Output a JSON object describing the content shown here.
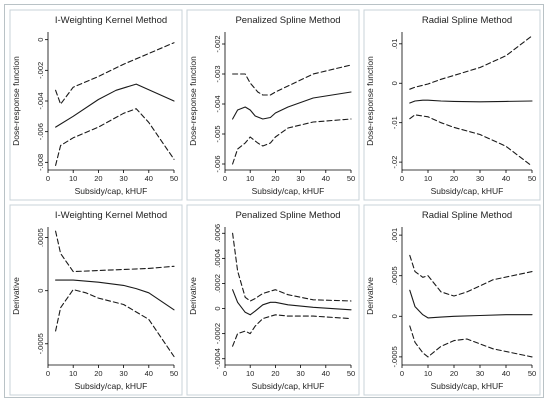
{
  "chart_data": [
    {
      "type": "line",
      "title": "I-Weighting Kernel Method",
      "xlabel": "Subsidy/cap, kHUF",
      "ylabel": "Dose-response function",
      "xlim": [
        0,
        50
      ],
      "ylim": [
        -0.0085,
        0.0005
      ],
      "xticks": [
        0,
        10,
        20,
        30,
        40,
        50
      ],
      "xtick_labels": [
        "0",
        "10",
        "20",
        "30",
        "40",
        "50"
      ],
      "yticks": [
        -0.008,
        -0.006,
        -0.004,
        -0.002,
        0
      ],
      "ytick_labels": [
        "-.008",
        "-.006",
        "-.004",
        "-.002",
        "0"
      ],
      "series": [
        {
          "style": "solid",
          "x": [
            3,
            10,
            20,
            27,
            35,
            50
          ],
          "y": [
            -0.0057,
            -0.005,
            -0.0039,
            -0.0033,
            -0.0029,
            -0.004
          ]
        },
        {
          "style": "dashed",
          "x": [
            3,
            5,
            10,
            20,
            30,
            40,
            50
          ],
          "y": [
            -0.0033,
            -0.0042,
            -0.0031,
            -0.0024,
            -0.0016,
            -0.0009,
            -0.0002
          ]
        },
        {
          "style": "dashed",
          "x": [
            3,
            5,
            10,
            20,
            30,
            35,
            40,
            50
          ],
          "y": [
            -0.0082,
            -0.0069,
            -0.0064,
            -0.0057,
            -0.0048,
            -0.0045,
            -0.0054,
            -0.0078
          ]
        }
      ]
    },
    {
      "type": "line",
      "title": "Penalized Spline Method",
      "xlabel": "Subsidy/cap, kHUF",
      "ylabel": "Dose-response function",
      "xlim": [
        0,
        50
      ],
      "ylim": [
        -0.0062,
        -0.0016
      ],
      "xticks": [
        0,
        10,
        20,
        30,
        40,
        50
      ],
      "xtick_labels": [
        "0",
        "10",
        "20",
        "30",
        "40",
        "50"
      ],
      "yticks": [
        -0.006,
        -0.005,
        -0.004,
        -0.003,
        -0.002
      ],
      "ytick_labels": [
        "-.006",
        "-.005",
        "-.004",
        "-.003",
        "-.002"
      ],
      "series": [
        {
          "style": "solid",
          "x": [
            3,
            5,
            8,
            10,
            12,
            15,
            18,
            20,
            25,
            35,
            50
          ],
          "y": [
            -0.0045,
            -0.0042,
            -0.0041,
            -0.0042,
            -0.0044,
            -0.0045,
            -0.00445,
            -0.0043,
            -0.0041,
            -0.0038,
            -0.0036
          ]
        },
        {
          "style": "dashed",
          "x": [
            3,
            5,
            8,
            10,
            13,
            15,
            18,
            20,
            25,
            35,
            50
          ],
          "y": [
            -0.003,
            -0.003,
            -0.003,
            -0.0033,
            -0.0036,
            -0.0037,
            -0.0037,
            -0.0036,
            -0.0034,
            -0.003,
            -0.0027
          ]
        },
        {
          "style": "dashed",
          "x": [
            3,
            5,
            8,
            10,
            13,
            15,
            18,
            20,
            25,
            35,
            50
          ],
          "y": [
            -0.006,
            -0.0055,
            -0.0053,
            -0.0051,
            -0.0053,
            -0.0054,
            -0.0053,
            -0.0051,
            -0.0048,
            -0.0046,
            -0.0045
          ]
        }
      ]
    },
    {
      "type": "line",
      "title": "Radial Spline Method",
      "xlabel": "Subsidy/cap, kHUF",
      "ylabel": "Dose-response function",
      "xlim": [
        0,
        50
      ],
      "ylim": [
        -0.022,
        0.013
      ],
      "xticks": [
        0,
        10,
        20,
        30,
        40,
        50
      ],
      "xtick_labels": [
        "0",
        "10",
        "20",
        "30",
        "40",
        "50"
      ],
      "yticks": [
        -0.02,
        -0.01,
        0,
        0.01
      ],
      "ytick_labels": [
        "-.02",
        "-.01",
        "0",
        ".01"
      ],
      "series": [
        {
          "style": "solid",
          "x": [
            3,
            5,
            8,
            10,
            15,
            20,
            30,
            40,
            50
          ],
          "y": [
            -0.005,
            -0.0045,
            -0.0043,
            -0.0043,
            -0.0045,
            -0.0046,
            -0.0047,
            -0.0046,
            -0.0045
          ]
        },
        {
          "style": "dashed",
          "x": [
            3,
            5,
            10,
            15,
            20,
            30,
            40,
            50
          ],
          "y": [
            -0.0015,
            -0.001,
            -0.0002,
            0.001,
            0.002,
            0.004,
            0.007,
            0.012
          ]
        },
        {
          "style": "dashed",
          "x": [
            3,
            5,
            10,
            15,
            20,
            30,
            40,
            50
          ],
          "y": [
            -0.009,
            -0.008,
            -0.0085,
            -0.01,
            -0.0112,
            -0.013,
            -0.016,
            -0.021
          ]
        }
      ]
    },
    {
      "type": "line",
      "title": "I-Weighting Kernel Method",
      "xlabel": "Subsidy/cap, kHUF",
      "ylabel": "Derivative",
      "xlim": [
        0,
        50
      ],
      "ylim": [
        -0.0007,
        0.0006
      ],
      "xticks": [
        0,
        10,
        20,
        30,
        40,
        50
      ],
      "xtick_labels": [
        "0",
        "10",
        "20",
        "30",
        "40",
        "50"
      ],
      "yticks": [
        -0.0005,
        0,
        0.0005
      ],
      "ytick_labels": [
        "-.0005",
        "0",
        ".0005"
      ],
      "series": [
        {
          "style": "solid",
          "x": [
            3,
            10,
            20,
            30,
            35,
            40,
            50
          ],
          "y": [
            0.0001,
            0.0001,
            8e-05,
            5e-05,
            2e-05,
            -2e-05,
            -0.00018
          ]
        },
        {
          "style": "dashed",
          "x": [
            3,
            5,
            10,
            20,
            30,
            40,
            50
          ],
          "y": [
            0.00056,
            0.00035,
            0.00018,
            0.00019,
            0.0002,
            0.00021,
            0.00023
          ]
        },
        {
          "style": "dashed",
          "x": [
            3,
            5,
            10,
            15,
            20,
            30,
            40,
            50
          ],
          "y": [
            -0.00038,
            -0.00016,
            1e-05,
            -2e-05,
            -7e-05,
            -0.00013,
            -0.00027,
            -0.00062
          ]
        }
      ]
    },
    {
      "type": "line",
      "title": "Penalized Spline Method",
      "xlabel": "Subsidy/cap, kHUF",
      "ylabel": "Derivative",
      "xlim": [
        0,
        50
      ],
      "ylim": [
        -0.00045,
        0.00065
      ],
      "xticks": [
        0,
        10,
        20,
        30,
        40,
        50
      ],
      "xtick_labels": [
        "0",
        "10",
        "20",
        "30",
        "40",
        "50"
      ],
      "yticks": [
        -0.0004,
        -0.0002,
        0,
        0.0002,
        0.0004,
        0.0006
      ],
      "ytick_labels": [
        "-.0004",
        "-.0002",
        "0",
        ".0002",
        ".0004",
        ".0006"
      ],
      "series": [
        {
          "style": "solid",
          "x": [
            3,
            5,
            8,
            10,
            12,
            15,
            18,
            20,
            25,
            35,
            50
          ],
          "y": [
            0.00015,
            5e-05,
            -3e-05,
            -5e-05,
            -2e-05,
            3e-05,
            5e-05,
            5e-05,
            3e-05,
            1e-05,
            -1e-05
          ]
        },
        {
          "style": "dashed",
          "x": [
            3,
            5,
            8,
            10,
            12,
            15,
            20,
            25,
            35,
            50
          ],
          "y": [
            0.0006,
            0.0003,
            9e-05,
            6e-05,
            8e-05,
            0.00012,
            0.00015,
            0.00011,
            7e-05,
            6e-05
          ]
        },
        {
          "style": "dashed",
          "x": [
            3,
            5,
            8,
            10,
            12,
            15,
            20,
            25,
            35,
            50
          ],
          "y": [
            -0.0003,
            -0.0002,
            -0.00018,
            -0.0002,
            -0.00014,
            -8e-05,
            -5e-05,
            -6e-05,
            -6e-05,
            -8e-05
          ]
        }
      ]
    },
    {
      "type": "line",
      "title": "Radial Spline Method",
      "xlabel": "Subsidy/cap, kHUF",
      "ylabel": "Derivative",
      "xlim": [
        0,
        50
      ],
      "ylim": [
        -0.0006,
        0.0011
      ],
      "xticks": [
        0,
        10,
        20,
        30,
        40,
        50
      ],
      "xtick_labels": [
        "0",
        "10",
        "20",
        "30",
        "40",
        "50"
      ],
      "yticks": [
        -0.0005,
        0,
        0.0005,
        0.001
      ],
      "ytick_labels": [
        "-.0005",
        "0",
        ".0005",
        ".001"
      ],
      "series": [
        {
          "style": "solid",
          "x": [
            3,
            5,
            8,
            10,
            15,
            20,
            30,
            40,
            50
          ],
          "y": [
            0.00032,
            0.00012,
            2e-05,
            -2e-05,
            -1e-05,
            0.0,
            1e-05,
            2e-05,
            2e-05
          ]
        },
        {
          "style": "dashed",
          "x": [
            3,
            5,
            8,
            10,
            15,
            20,
            25,
            35,
            50
          ],
          "y": [
            0.00075,
            0.00055,
            0.00048,
            0.0005,
            0.0003,
            0.00025,
            0.0003,
            0.00045,
            0.00055
          ]
        },
        {
          "style": "dashed",
          "x": [
            3,
            5,
            8,
            10,
            15,
            20,
            25,
            35,
            50
          ],
          "y": [
            -0.00012,
            -0.00032,
            -0.00045,
            -0.0005,
            -0.00037,
            -0.0003,
            -0.00028,
            -0.0004,
            -0.0005
          ]
        }
      ]
    }
  ]
}
